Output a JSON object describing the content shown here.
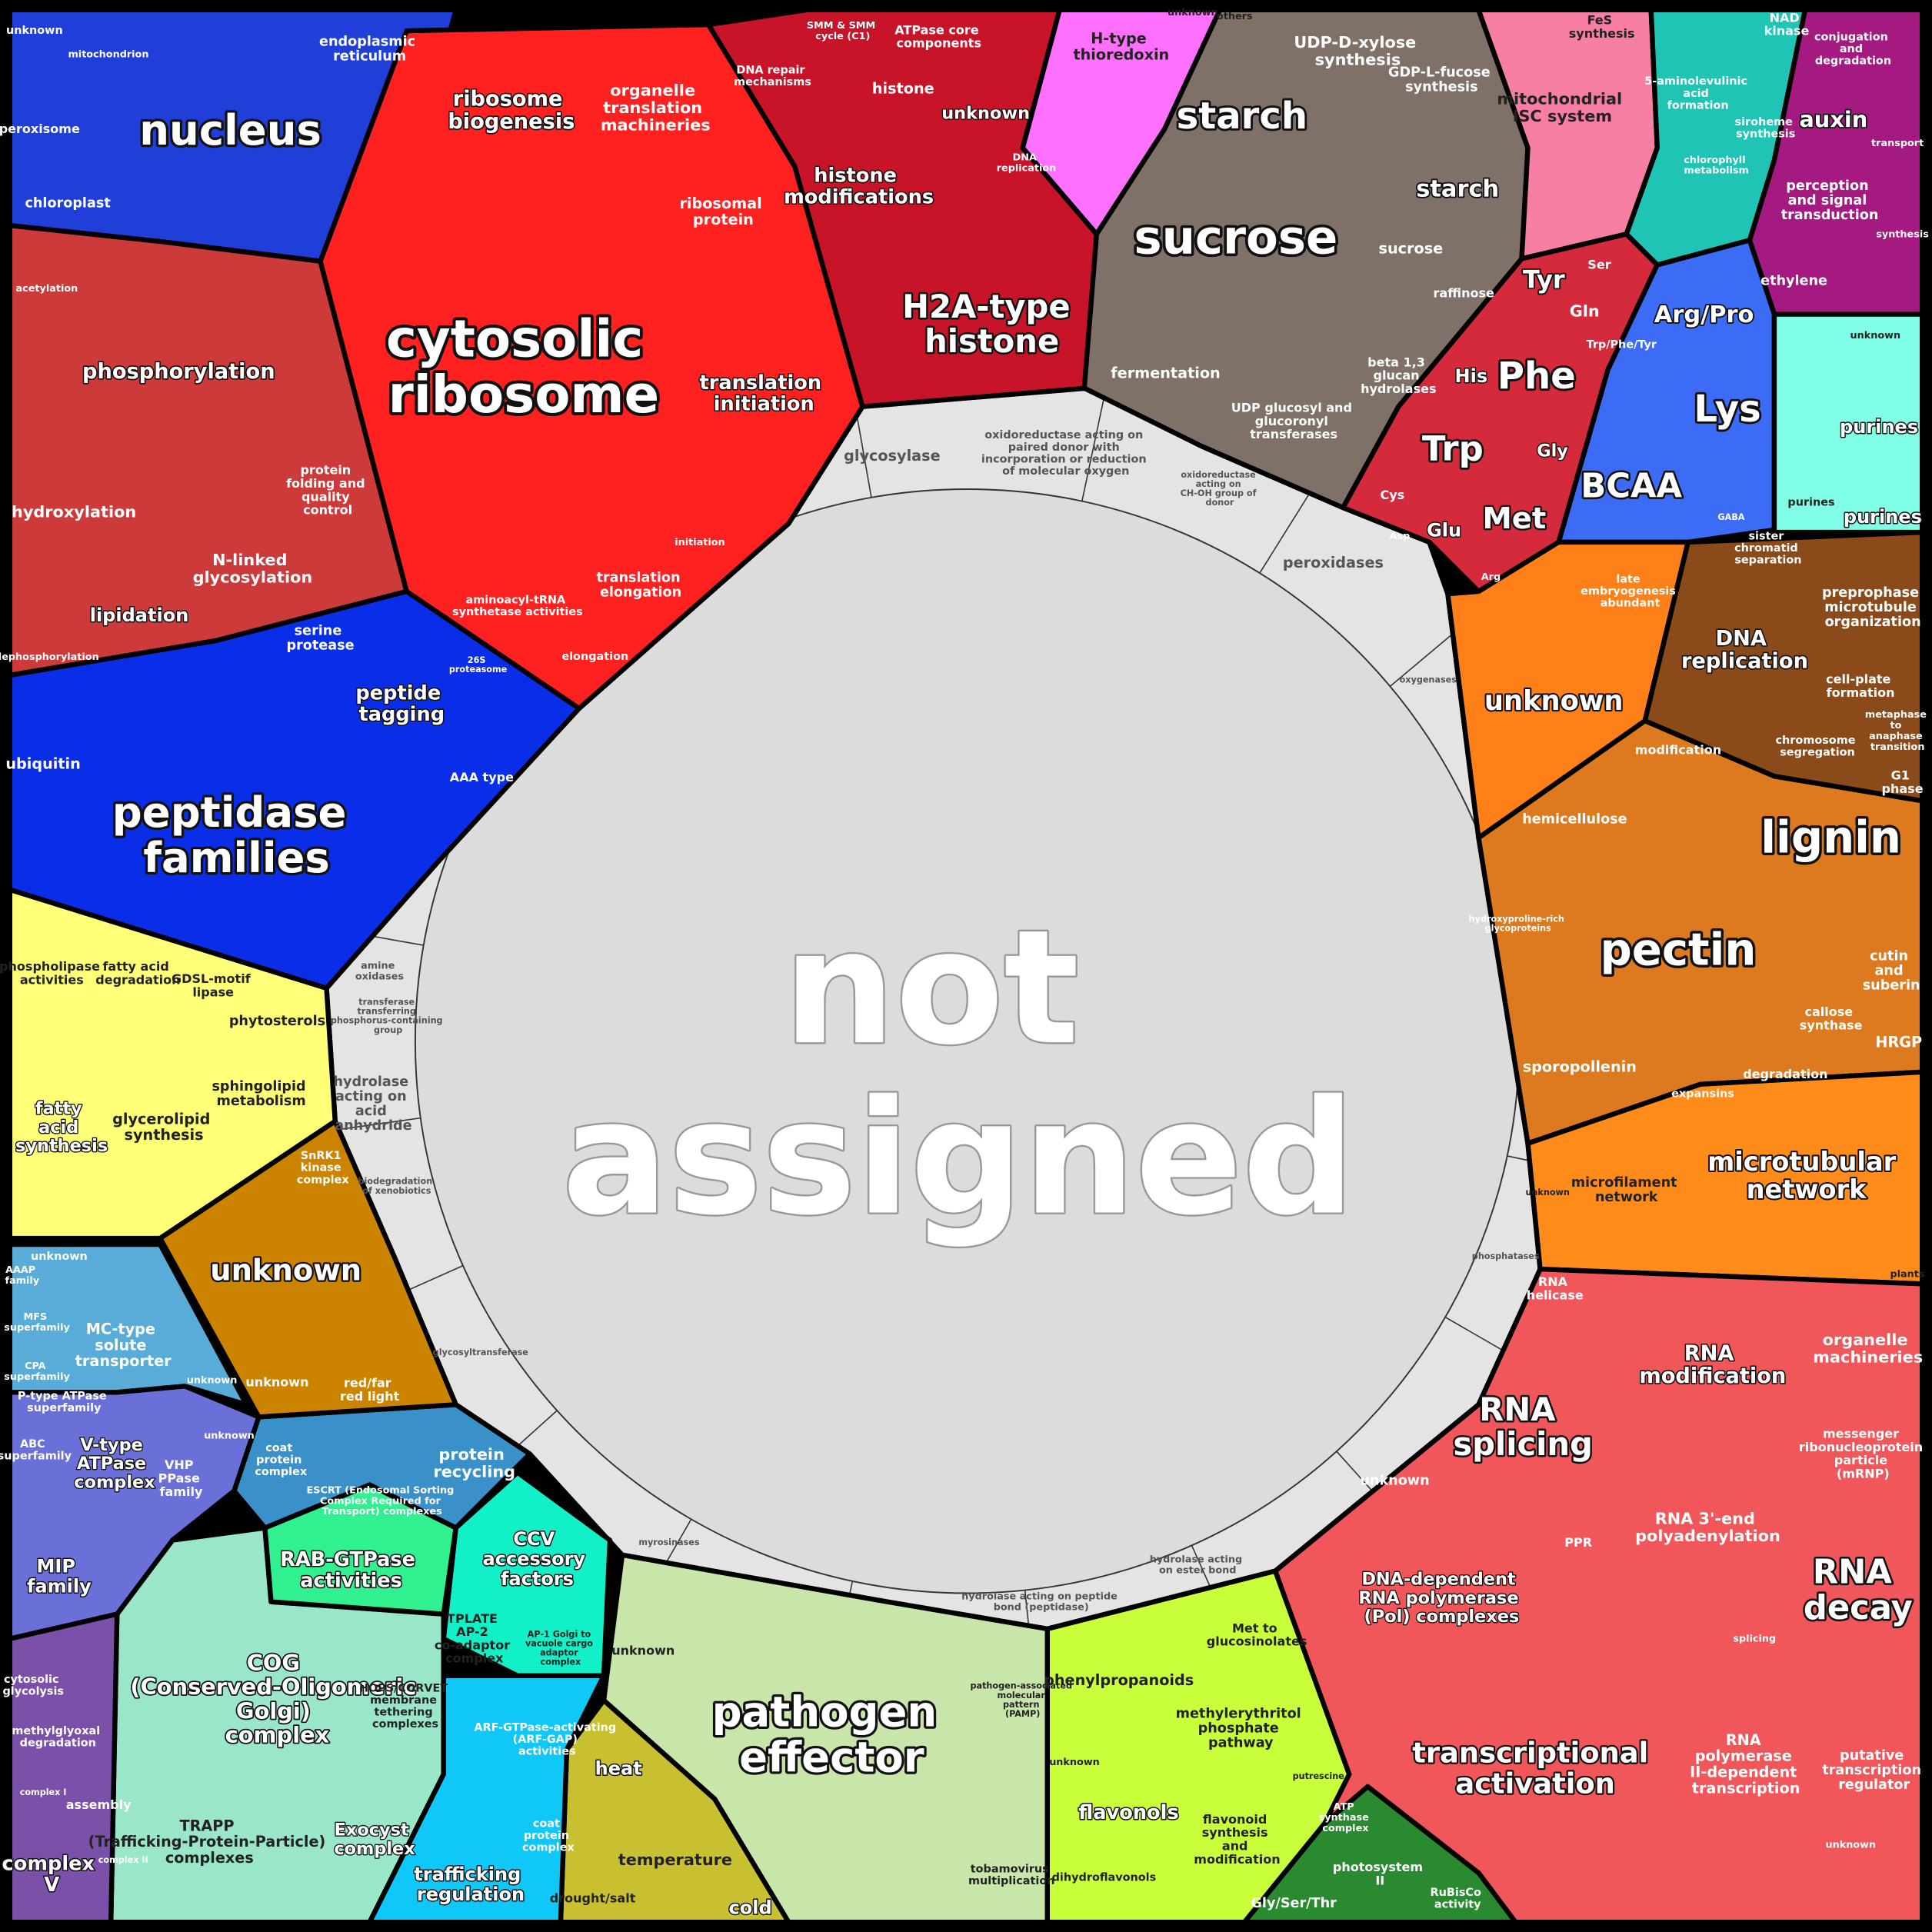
{
  "center": {
    "color": "#dcdcdc",
    "label": "not assigned"
  },
  "ring": {
    "color": "#e4e4e4",
    "labels": [
      "glycosylase",
      "oxidoreductase acting on paired donor with incorporation or reduction of molecular oxygen",
      "oxidoreductase acting on CH-OH group of donor",
      "peroxidases",
      "oxygenases",
      "amine oxidases",
      "transferase transferring phosphorus-containing group",
      "hydrolase acting on acid anhydride",
      "biodegradation of xenobiotics",
      "glycosyltransferase",
      "myrosinases",
      "hydrolase acting on peptide bond (peptidase)",
      "hydrolase acting on ester bond",
      "phosphatases"
    ]
  },
  "regions": [
    {
      "color": "#1f3fd8",
      "labels": [
        "nucleus",
        "endoplasmic reticulum",
        "peroxisome",
        "chloroplast",
        "unknown",
        "mitochondrion"
      ]
    },
    {
      "color": "#cc3a3a",
      "labels": [
        "phosphorylation",
        "hydroxylation",
        "lipidation",
        "N-linked glycosylation",
        "protein folding and quality control",
        "dephosphorylation",
        "acetylation"
      ]
    },
    {
      "color": "#ff2020",
      "labels": [
        "cytosolic ribosome",
        "ribosome biogenesis",
        "organelle translation machineries",
        "ribosomal protein",
        "translation initiation",
        "translation elongation",
        "aminoacyl-tRNA synthetase activities",
        "elongation",
        "initiation"
      ]
    },
    {
      "color": "#c81428",
      "labels": [
        "histone modifications",
        "H2A-type histone",
        "unknown",
        "histone",
        "DNA repair mechanisms",
        "ATPase core components",
        "SMM & SMM cycle (C1)",
        "DNA replication"
      ]
    },
    {
      "color": "#ff70ff",
      "labels": [
        "H-type thioredoxin",
        "others",
        "unknown"
      ]
    },
    {
      "color": "#7f7068",
      "labels": [
        "starch",
        "sucrose",
        "UDP-D-xylose synthesis",
        "GDP-L-fucose synthesis",
        "starch",
        "sucrose",
        "raffinose",
        "fermentation",
        "beta 1,3 glucan hydrolases",
        "UDP glucosyl and glucoronyl transferases"
      ]
    },
    {
      "color": "#f77fa4",
      "labels": [
        "mitochondrial ISC system",
        "FeS synthesis"
      ]
    },
    {
      "color": "#20c4b4",
      "labels": [
        "5-aminolevulinic acid formation",
        "NAD kinase",
        "chlorophyll metabolism",
        "siroheme synthesis"
      ]
    },
    {
      "color": "#a41a80",
      "labels": [
        "auxin",
        "perception and signal transduction",
        "ethylene",
        "conjugation and degradation",
        "transport",
        "synthesis"
      ]
    },
    {
      "color": "#d42a3c",
      "labels": [
        "Tyr",
        "Phe",
        "Trp",
        "Met",
        "Glu",
        "His",
        "Gly",
        "Gln",
        "Cys",
        "Ser",
        "Arg",
        "Asp"
      ]
    },
    {
      "color": "#3c6cf5",
      "labels": [
        "Arg/Pro",
        "Lys",
        "BCAA",
        "Trp/Phe/Tyr",
        "GABA"
      ]
    },
    {
      "color": "#80ffe6",
      "labels": [
        "purines",
        "purines",
        "purines",
        "unknown"
      ]
    },
    {
      "color": "#ff8018",
      "labels": [
        "unknown",
        "late embryogenesis abundant",
        "modification"
      ]
    },
    {
      "color": "#8a4a1a",
      "labels": [
        "DNA replication",
        "preprophase microtubule organization",
        "sister chromatid separation",
        "cell-plate formation",
        "chromosome segregation",
        "G1 phase",
        "metaphase to anaphase transition"
      ]
    },
    {
      "color": "#dd7a20",
      "labels": [
        "lignin",
        "pectin",
        "hemicellulose",
        "sporopollenin",
        "cutin and suberin",
        "callose synthase",
        "HRGP",
        "degradation",
        "expansins",
        "hydroxyproline-rich glycoproteins"
      ]
    },
    {
      "color": "#ff8c1a",
      "labels": [
        "microtubular network",
        "microfilament network",
        "unknown",
        "plants"
      ]
    },
    {
      "color": "#f0565a",
      "labels": [
        "RNA splicing",
        "RNA modification",
        "RNA decay",
        "transcriptional activation",
        "DNA-dependent RNA polymerase (Pol) complexes",
        "RNA 3'-end polyadenylation",
        "RNA polymerase II-dependent transcription",
        "messenger ribonucleoprotein particle (mRNP)",
        "organelle machineries",
        "unknown",
        "putative transcription regulator",
        "RNA helicase",
        "PPR",
        "splicing",
        "unknown"
      ]
    },
    {
      "color": "#c8ff3a",
      "labels": [
        "phenylpropanoids",
        "flavonols",
        "methylerythritol phosphate pathway",
        "Met to glucosinolates",
        "flavonoid synthesis and modification",
        "dihydroflavonols",
        "unknown",
        "putrescine"
      ]
    },
    {
      "color": "#2a8a30",
      "labels": [
        "Gly/Ser/Thr",
        "photosystem II",
        "RuBisCo activity",
        "ATP synthase complex"
      ]
    },
    {
      "color": "#c8e6aa",
      "labels": [
        "pathogen effector",
        "unknown",
        "tobamovirus multiplication",
        "pathogen-associated molecular pattern (PAMP)"
      ]
    },
    {
      "color": "#c8c030",
      "labels": [
        "heat",
        "temperature",
        "cold",
        "drought/salt"
      ]
    },
    {
      "color": "#9ae6c8",
      "labels": [
        "COG (Conserved-Oligomeric Golgi) complex",
        "Exocyst complex",
        "TRAPP (Trafficking-Protein-Particle) complexes",
        "HOPS/CORVET membrane tethering complexes"
      ]
    },
    {
      "color": "#30f090",
      "labels": [
        "RAB-GTPase activities"
      ]
    },
    {
      "color": "#12f0c8",
      "labels": [
        "CCV accessory factors",
        "TPLATE AP-2 co-adaptor complex",
        "AP-1 Golgi to vacuole cargo adaptor complex"
      ]
    },
    {
      "color": "#3a90c8",
      "labels": [
        "protein recycling",
        "ESCRT (Endosomal Sorting Complex Required for Transport) complexes",
        "coat protein complex"
      ]
    },
    {
      "color": "#10c8f8",
      "labels": [
        "trafficking regulation",
        "ARF-GTPase-activating (ARF-GAP) activities",
        "coat protein complex"
      ]
    },
    {
      "color": "#5aacd8",
      "labels": [
        "MC-type solute transporter",
        "MFS superfamily",
        "CPA superfamily",
        "AAAP family",
        "unknown",
        "unknown",
        "unknown"
      ]
    },
    {
      "color": "#6a70d8",
      "labels": [
        "V-type ATPase complex",
        "P-type ATPase superfamily",
        "ABC superfamily",
        "VHP PPase family",
        "MIP family"
      ]
    },
    {
      "color": "#7a50a8",
      "labels": [
        "complex V",
        "methylglyoxal degradation",
        "cytosolic glycolysis",
        "assembly",
        "complex I",
        "complex II"
      ]
    },
    {
      "color": "#ffff78",
      "labels": [
        "fatty acid synthesis",
        "glycerolipid synthesis",
        "sphingolipid metabolism",
        "phytosterols",
        "phospholipase activities",
        "fatty acid degradation",
        "GDSL-motif lipase"
      ]
    },
    {
      "color": "#cc8400",
      "labels": [
        "unknown",
        "SnRK1 kinase complex",
        "red/far red light",
        "unknown"
      ]
    },
    {
      "color": "#0a2ee8",
      "labels": [
        "peptidase families",
        "peptide tagging",
        "serine protease",
        "ubiquitin",
        "AAA type",
        "26S proteasome"
      ]
    }
  ]
}
